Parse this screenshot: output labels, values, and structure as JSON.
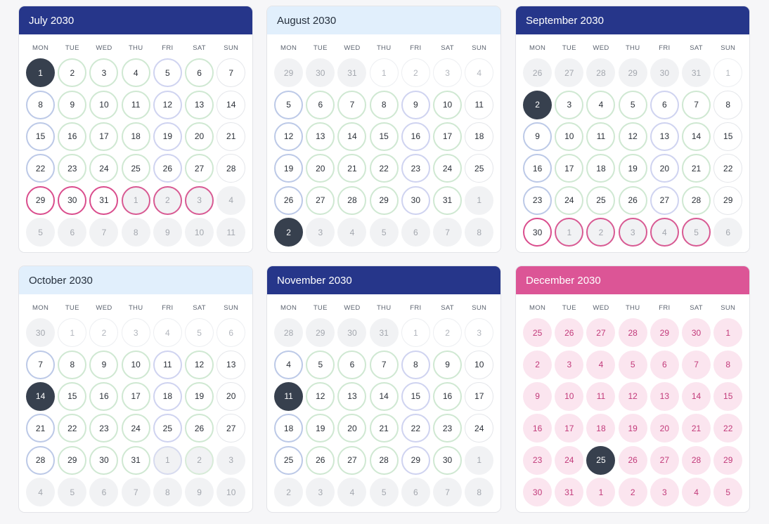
{
  "weekdays": [
    "MON",
    "TUE",
    "WED",
    "THU",
    "FRI",
    "SAT",
    "SUN"
  ],
  "months": [
    {
      "title": "July 2030",
      "header": "navy",
      "days": [
        {
          "n": "1",
          "s": "sel"
        },
        {
          "n": "2",
          "s": "green"
        },
        {
          "n": "3",
          "s": "green"
        },
        {
          "n": "4",
          "s": "green"
        },
        {
          "n": "5",
          "s": "lav"
        },
        {
          "n": "6",
          "s": "green"
        },
        {
          "n": "7",
          "s": "plain"
        },
        {
          "n": "8",
          "s": "blue"
        },
        {
          "n": "9",
          "s": "green"
        },
        {
          "n": "10",
          "s": "green"
        },
        {
          "n": "11",
          "s": "green"
        },
        {
          "n": "12",
          "s": "lav"
        },
        {
          "n": "13",
          "s": "green"
        },
        {
          "n": "14",
          "s": "plain"
        },
        {
          "n": "15",
          "s": "blue"
        },
        {
          "n": "16",
          "s": "green"
        },
        {
          "n": "17",
          "s": "green"
        },
        {
          "n": "18",
          "s": "green"
        },
        {
          "n": "19",
          "s": "lav"
        },
        {
          "n": "20",
          "s": "green"
        },
        {
          "n": "21",
          "s": "plain"
        },
        {
          "n": "22",
          "s": "blue"
        },
        {
          "n": "23",
          "s": "green"
        },
        {
          "n": "24",
          "s": "green"
        },
        {
          "n": "25",
          "s": "green"
        },
        {
          "n": "26",
          "s": "lav"
        },
        {
          "n": "27",
          "s": "green"
        },
        {
          "n": "28",
          "s": "plain"
        },
        {
          "n": "29",
          "s": "pinkb"
        },
        {
          "n": "30",
          "s": "pinkb"
        },
        {
          "n": "31",
          "s": "pinkb"
        },
        {
          "n": "1",
          "s": "mutedpink"
        },
        {
          "n": "2",
          "s": "mutedpink"
        },
        {
          "n": "3",
          "s": "mutedpink"
        },
        {
          "n": "4",
          "s": "muted"
        },
        {
          "n": "5",
          "s": "muted"
        },
        {
          "n": "6",
          "s": "muted"
        },
        {
          "n": "7",
          "s": "muted"
        },
        {
          "n": "8",
          "s": "muted"
        },
        {
          "n": "9",
          "s": "muted"
        },
        {
          "n": "10",
          "s": "muted"
        },
        {
          "n": "11",
          "s": "muted"
        }
      ]
    },
    {
      "title": "August 2030",
      "header": "light",
      "days": [
        {
          "n": "29",
          "s": "muted"
        },
        {
          "n": "30",
          "s": "muted"
        },
        {
          "n": "31",
          "s": "muted"
        },
        {
          "n": "1",
          "s": "mutedring"
        },
        {
          "n": "2",
          "s": "mutedring"
        },
        {
          "n": "3",
          "s": "mutedring"
        },
        {
          "n": "4",
          "s": "mutedring"
        },
        {
          "n": "5",
          "s": "blue"
        },
        {
          "n": "6",
          "s": "green"
        },
        {
          "n": "7",
          "s": "green"
        },
        {
          "n": "8",
          "s": "green"
        },
        {
          "n": "9",
          "s": "lav"
        },
        {
          "n": "10",
          "s": "green"
        },
        {
          "n": "11",
          "s": "plain"
        },
        {
          "n": "12",
          "s": "blue"
        },
        {
          "n": "13",
          "s": "green"
        },
        {
          "n": "14",
          "s": "green"
        },
        {
          "n": "15",
          "s": "green"
        },
        {
          "n": "16",
          "s": "lav"
        },
        {
          "n": "17",
          "s": "green"
        },
        {
          "n": "18",
          "s": "plain"
        },
        {
          "n": "19",
          "s": "blue"
        },
        {
          "n": "20",
          "s": "green"
        },
        {
          "n": "21",
          "s": "green"
        },
        {
          "n": "22",
          "s": "green"
        },
        {
          "n": "23",
          "s": "lav"
        },
        {
          "n": "24",
          "s": "green"
        },
        {
          "n": "25",
          "s": "plain"
        },
        {
          "n": "26",
          "s": "blue"
        },
        {
          "n": "27",
          "s": "green"
        },
        {
          "n": "28",
          "s": "green"
        },
        {
          "n": "29",
          "s": "green"
        },
        {
          "n": "30",
          "s": "lav"
        },
        {
          "n": "31",
          "s": "green"
        },
        {
          "n": "1",
          "s": "muted"
        },
        {
          "n": "2",
          "s": "sel"
        },
        {
          "n": "3",
          "s": "muted"
        },
        {
          "n": "4",
          "s": "muted"
        },
        {
          "n": "5",
          "s": "muted"
        },
        {
          "n": "6",
          "s": "muted"
        },
        {
          "n": "7",
          "s": "muted"
        },
        {
          "n": "8",
          "s": "muted"
        }
      ]
    },
    {
      "title": "September 2030",
      "header": "navy",
      "days": [
        {
          "n": "26",
          "s": "muted"
        },
        {
          "n": "27",
          "s": "muted"
        },
        {
          "n": "28",
          "s": "muted"
        },
        {
          "n": "29",
          "s": "muted"
        },
        {
          "n": "30",
          "s": "muted"
        },
        {
          "n": "31",
          "s": "muted"
        },
        {
          "n": "1",
          "s": "mutedring"
        },
        {
          "n": "2",
          "s": "sel"
        },
        {
          "n": "3",
          "s": "green"
        },
        {
          "n": "4",
          "s": "green"
        },
        {
          "n": "5",
          "s": "green"
        },
        {
          "n": "6",
          "s": "lav"
        },
        {
          "n": "7",
          "s": "green"
        },
        {
          "n": "8",
          "s": "plain"
        },
        {
          "n": "9",
          "s": "blue"
        },
        {
          "n": "10",
          "s": "green"
        },
        {
          "n": "11",
          "s": "green"
        },
        {
          "n": "12",
          "s": "green"
        },
        {
          "n": "13",
          "s": "lav"
        },
        {
          "n": "14",
          "s": "green"
        },
        {
          "n": "15",
          "s": "plain"
        },
        {
          "n": "16",
          "s": "blue"
        },
        {
          "n": "17",
          "s": "green"
        },
        {
          "n": "18",
          "s": "green"
        },
        {
          "n": "19",
          "s": "green"
        },
        {
          "n": "20",
          "s": "lav"
        },
        {
          "n": "21",
          "s": "green"
        },
        {
          "n": "22",
          "s": "plain"
        },
        {
          "n": "23",
          "s": "blue"
        },
        {
          "n": "24",
          "s": "green"
        },
        {
          "n": "25",
          "s": "green"
        },
        {
          "n": "26",
          "s": "green"
        },
        {
          "n": "27",
          "s": "lav"
        },
        {
          "n": "28",
          "s": "green"
        },
        {
          "n": "29",
          "s": "plain"
        },
        {
          "n": "30",
          "s": "pinkring"
        },
        {
          "n": "1",
          "s": "mutedpink"
        },
        {
          "n": "2",
          "s": "mutedpink"
        },
        {
          "n": "3",
          "s": "mutedpink"
        },
        {
          "n": "4",
          "s": "mutedpink"
        },
        {
          "n": "5",
          "s": "mutedpink"
        },
        {
          "n": "6",
          "s": "muted"
        }
      ]
    },
    {
      "title": "October 2030",
      "header": "light",
      "days": [
        {
          "n": "30",
          "s": "muted"
        },
        {
          "n": "1",
          "s": "mutedring"
        },
        {
          "n": "2",
          "s": "mutedring"
        },
        {
          "n": "3",
          "s": "mutedring"
        },
        {
          "n": "4",
          "s": "mutedring"
        },
        {
          "n": "5",
          "s": "mutedring"
        },
        {
          "n": "6",
          "s": "mutedring"
        },
        {
          "n": "7",
          "s": "blue"
        },
        {
          "n": "8",
          "s": "green"
        },
        {
          "n": "9",
          "s": "green"
        },
        {
          "n": "10",
          "s": "green"
        },
        {
          "n": "11",
          "s": "lav"
        },
        {
          "n": "12",
          "s": "green"
        },
        {
          "n": "13",
          "s": "plain"
        },
        {
          "n": "14",
          "s": "sel"
        },
        {
          "n": "15",
          "s": "green"
        },
        {
          "n": "16",
          "s": "green"
        },
        {
          "n": "17",
          "s": "green"
        },
        {
          "n": "18",
          "s": "lav"
        },
        {
          "n": "19",
          "s": "green"
        },
        {
          "n": "20",
          "s": "plain"
        },
        {
          "n": "21",
          "s": "blue"
        },
        {
          "n": "22",
          "s": "green"
        },
        {
          "n": "23",
          "s": "green"
        },
        {
          "n": "24",
          "s": "green"
        },
        {
          "n": "25",
          "s": "lav"
        },
        {
          "n": "26",
          "s": "green"
        },
        {
          "n": "27",
          "s": "plain"
        },
        {
          "n": "28",
          "s": "blue"
        },
        {
          "n": "29",
          "s": "green"
        },
        {
          "n": "30",
          "s": "green"
        },
        {
          "n": "31",
          "s": "green"
        },
        {
          "n": "1",
          "s": "mutedlav"
        },
        {
          "n": "2",
          "s": "mutedgreen"
        },
        {
          "n": "3",
          "s": "muted"
        },
        {
          "n": "4",
          "s": "muted"
        },
        {
          "n": "5",
          "s": "muted"
        },
        {
          "n": "6",
          "s": "muted"
        },
        {
          "n": "7",
          "s": "muted"
        },
        {
          "n": "8",
          "s": "muted"
        },
        {
          "n": "9",
          "s": "muted"
        },
        {
          "n": "10",
          "s": "muted"
        }
      ]
    },
    {
      "title": "November 2030",
      "header": "navy",
      "days": [
        {
          "n": "28",
          "s": "muted"
        },
        {
          "n": "29",
          "s": "muted"
        },
        {
          "n": "30",
          "s": "muted"
        },
        {
          "n": "31",
          "s": "muted"
        },
        {
          "n": "1",
          "s": "mutedring"
        },
        {
          "n": "2",
          "s": "mutedring"
        },
        {
          "n": "3",
          "s": "mutedring"
        },
        {
          "n": "4",
          "s": "blue"
        },
        {
          "n": "5",
          "s": "green"
        },
        {
          "n": "6",
          "s": "green"
        },
        {
          "n": "7",
          "s": "green"
        },
        {
          "n": "8",
          "s": "lav"
        },
        {
          "n": "9",
          "s": "green"
        },
        {
          "n": "10",
          "s": "plain"
        },
        {
          "n": "11",
          "s": "sel"
        },
        {
          "n": "12",
          "s": "green"
        },
        {
          "n": "13",
          "s": "green"
        },
        {
          "n": "14",
          "s": "green"
        },
        {
          "n": "15",
          "s": "lav"
        },
        {
          "n": "16",
          "s": "green"
        },
        {
          "n": "17",
          "s": "plain"
        },
        {
          "n": "18",
          "s": "blue"
        },
        {
          "n": "19",
          "s": "green"
        },
        {
          "n": "20",
          "s": "green"
        },
        {
          "n": "21",
          "s": "green"
        },
        {
          "n": "22",
          "s": "lav"
        },
        {
          "n": "23",
          "s": "green"
        },
        {
          "n": "24",
          "s": "plain"
        },
        {
          "n": "25",
          "s": "blue"
        },
        {
          "n": "26",
          "s": "green"
        },
        {
          "n": "27",
          "s": "green"
        },
        {
          "n": "28",
          "s": "green"
        },
        {
          "n": "29",
          "s": "lav"
        },
        {
          "n": "30",
          "s": "green"
        },
        {
          "n": "1",
          "s": "muted"
        },
        {
          "n": "2",
          "s": "muted"
        },
        {
          "n": "3",
          "s": "muted"
        },
        {
          "n": "4",
          "s": "muted"
        },
        {
          "n": "5",
          "s": "muted"
        },
        {
          "n": "6",
          "s": "muted"
        },
        {
          "n": "7",
          "s": "muted"
        },
        {
          "n": "8",
          "s": "muted"
        }
      ]
    },
    {
      "title": "December 2030",
      "header": "pink",
      "days": [
        {
          "n": "25",
          "s": "pinkfill"
        },
        {
          "n": "26",
          "s": "pinkfill"
        },
        {
          "n": "27",
          "s": "pinkfill"
        },
        {
          "n": "28",
          "s": "pinkfill"
        },
        {
          "n": "29",
          "s": "pinkfill"
        },
        {
          "n": "30",
          "s": "pinkfill"
        },
        {
          "n": "1",
          "s": "pinkfill"
        },
        {
          "n": "2",
          "s": "pinkfill"
        },
        {
          "n": "3",
          "s": "pinkfill"
        },
        {
          "n": "4",
          "s": "pinkfill"
        },
        {
          "n": "5",
          "s": "pinkfill"
        },
        {
          "n": "6",
          "s": "pinkfill"
        },
        {
          "n": "7",
          "s": "pinkfill"
        },
        {
          "n": "8",
          "s": "pinkfill"
        },
        {
          "n": "9",
          "s": "pinkfill"
        },
        {
          "n": "10",
          "s": "pinkfill"
        },
        {
          "n": "11",
          "s": "pinkfill"
        },
        {
          "n": "12",
          "s": "pinkfill"
        },
        {
          "n": "13",
          "s": "pinkfill"
        },
        {
          "n": "14",
          "s": "pinkfill"
        },
        {
          "n": "15",
          "s": "pinkfill"
        },
        {
          "n": "16",
          "s": "pinkfill"
        },
        {
          "n": "17",
          "s": "pinkfill"
        },
        {
          "n": "18",
          "s": "pinkfill"
        },
        {
          "n": "19",
          "s": "pinkfill"
        },
        {
          "n": "20",
          "s": "pinkfill"
        },
        {
          "n": "21",
          "s": "pinkfill"
        },
        {
          "n": "22",
          "s": "pinkfill"
        },
        {
          "n": "23",
          "s": "pinkfill"
        },
        {
          "n": "24",
          "s": "pinkfill"
        },
        {
          "n": "25",
          "s": "sel"
        },
        {
          "n": "26",
          "s": "pinkfill"
        },
        {
          "n": "27",
          "s": "pinkfill"
        },
        {
          "n": "28",
          "s": "pinkfill"
        },
        {
          "n": "29",
          "s": "pinkfill"
        },
        {
          "n": "30",
          "s": "pinkfill"
        },
        {
          "n": "31",
          "s": "pinkfill"
        },
        {
          "n": "1",
          "s": "pinkfill"
        },
        {
          "n": "2",
          "s": "pinkfill"
        },
        {
          "n": "3",
          "s": "pinkfill"
        },
        {
          "n": "4",
          "s": "pinkfill"
        },
        {
          "n": "5",
          "s": "pinkfill"
        }
      ]
    }
  ]
}
